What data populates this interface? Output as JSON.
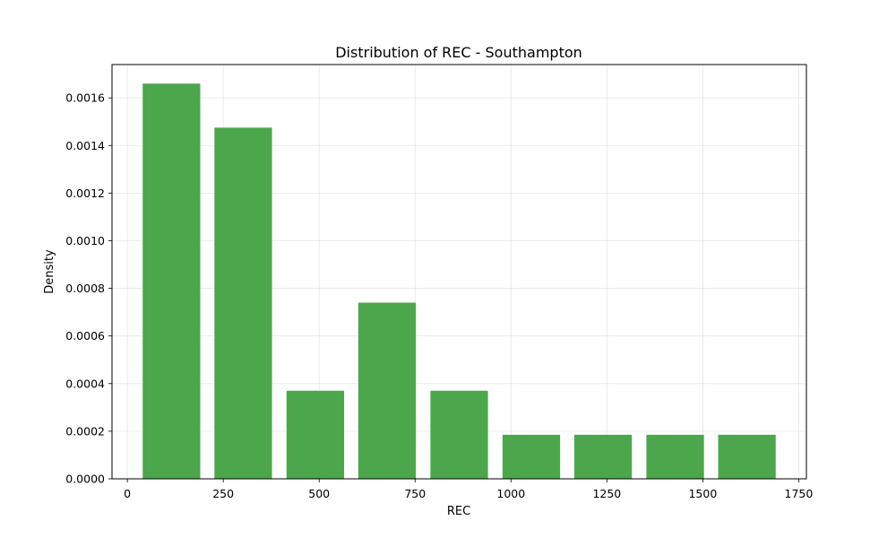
{
  "chart_data": {
    "type": "bar",
    "title": "Distribution of REC - Southampton",
    "xlabel": "REC",
    "ylabel": "Density",
    "xlim": [
      -40,
      1770
    ],
    "ylim": [
      0,
      0.00174
    ],
    "x_ticks": [
      0,
      250,
      500,
      750,
      1000,
      1250,
      1500,
      1750
    ],
    "y_ticks": [
      0.0,
      0.0002,
      0.0004,
      0.0006,
      0.0008,
      0.001,
      0.0012,
      0.0014,
      0.0016
    ],
    "y_tick_labels": [
      "0.0000",
      "0.0002",
      "0.0004",
      "0.0006",
      "0.0008",
      "0.0010",
      "0.0012",
      "0.0014",
      "0.0016"
    ],
    "bins": [
      {
        "start": 40,
        "end": 190,
        "density": 0.00166
      },
      {
        "start": 227,
        "end": 377,
        "density": 0.001475
      },
      {
        "start": 415,
        "end": 565,
        "density": 0.00037
      },
      {
        "start": 602,
        "end": 752,
        "density": 0.00074
      },
      {
        "start": 790,
        "end": 940,
        "density": 0.00037
      },
      {
        "start": 978,
        "end": 1128,
        "density": 0.000185
      },
      {
        "start": 1165,
        "end": 1315,
        "density": 0.000185
      },
      {
        "start": 1353,
        "end": 1503,
        "density": 0.000185
      },
      {
        "start": 1540,
        "end": 1690,
        "density": 0.000185
      }
    ],
    "bar_color": "#4ca64c",
    "grid": true,
    "legend": "none"
  }
}
